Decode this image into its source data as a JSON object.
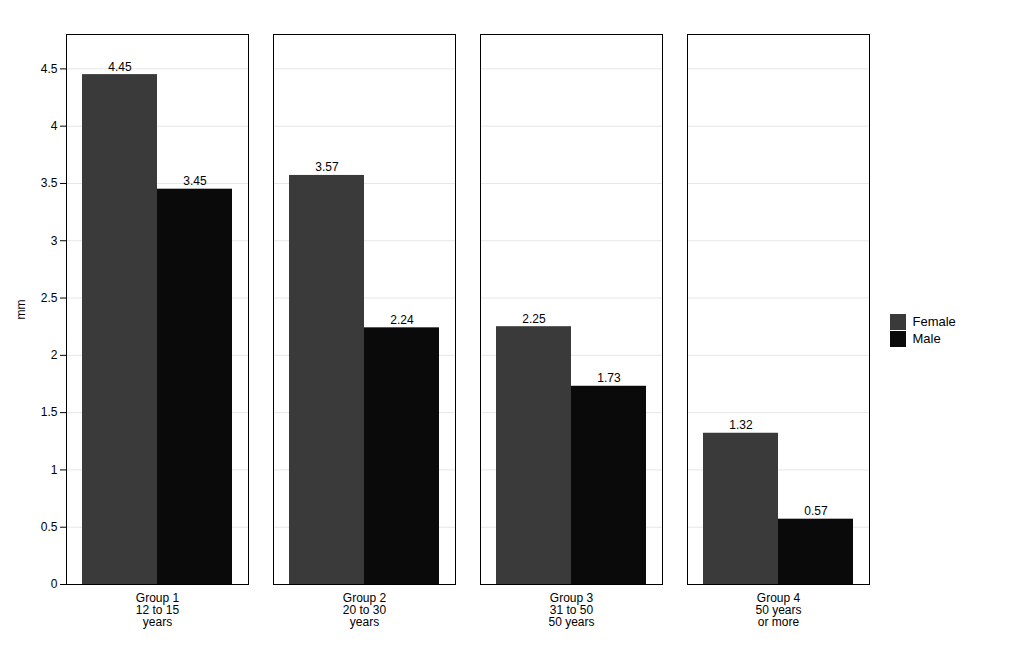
{
  "chart_data": {
    "type": "bar",
    "categories": [
      "Group 1\n12 to 15\nyears",
      "Group 2\n20 to 30\nyears",
      "Group 3\n31 to 50\n50 years",
      "Group 4\n50 years\nor more"
    ],
    "series": [
      {
        "name": "Female",
        "color": "#3a3a3a",
        "values": [
          4.45,
          3.57,
          2.25,
          1.32
        ]
      },
      {
        "name": "Male",
        "color": "#0a0a0a",
        "values": [
          3.45,
          2.24,
          1.73,
          0.57
        ]
      }
    ],
    "ylabel": "mm",
    "ylim": [
      0,
      4.8
    ],
    "yticks": [
      0,
      0.5,
      1,
      1.5,
      2,
      2.5,
      3,
      3.5,
      4,
      4.5
    ],
    "grid": true,
    "legend": "right",
    "data_labels": true
  }
}
